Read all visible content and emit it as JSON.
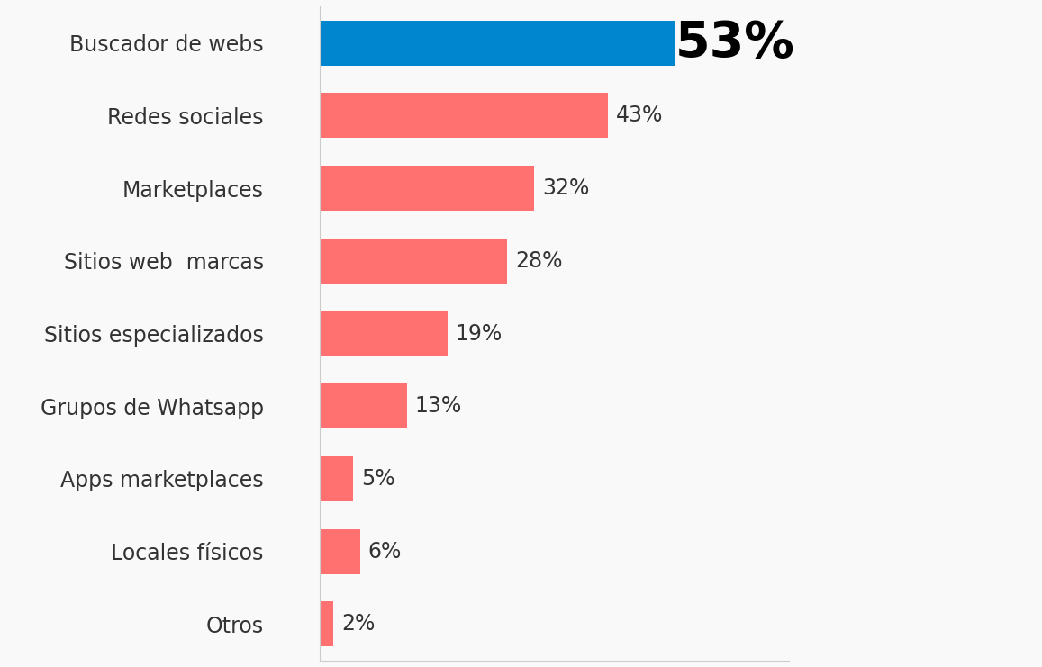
{
  "chart_data": {
    "type": "bar",
    "orientation": "horizontal",
    "categories": [
      "Buscador de webs",
      "Redes sociales",
      "Marketplaces",
      "Sitios web  marcas",
      "Sitios especializados",
      "Grupos de Whatsapp",
      "Apps marketplaces",
      "Locales físicos",
      "Otros"
    ],
    "values": [
      53,
      43,
      32,
      28,
      19,
      13,
      5,
      6,
      2
    ],
    "value_labels": [
      "53%",
      "43%",
      "32%",
      "28%",
      "19%",
      "13%",
      "5%",
      "6%",
      "2%"
    ],
    "colors": [
      "#0085CF",
      "#FF7070",
      "#FF7070",
      "#FF7070",
      "#FF7070",
      "#FF7070",
      "#FF7070",
      "#FF7070",
      "#FF7070"
    ],
    "xlim": [
      0,
      70
    ],
    "xticks": [],
    "data_labels": true,
    "tick_labels": "y",
    "grid": false
  }
}
